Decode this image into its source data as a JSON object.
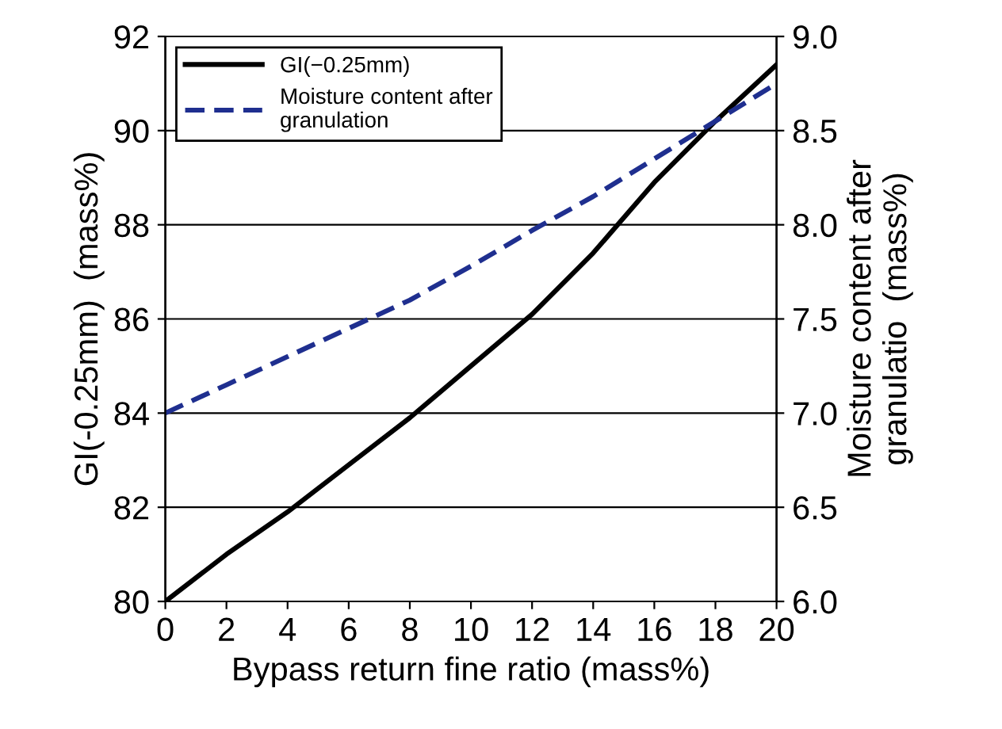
{
  "chart_data": {
    "type": "line",
    "xlabel": "Bypass return fine ratio (mass%)",
    "ylabel": "GI(-0.25mm)  (mass%)",
    "y2label": "Moisture content after\ngranulatio  (mass%)",
    "x": [
      0,
      2,
      4,
      6,
      8,
      10,
      12,
      14,
      16,
      18,
      20
    ],
    "series": [
      {
        "name": "GI(−0.25mm)",
        "color": "#000000",
        "line_style": "solid",
        "values": [
          80.0,
          81.0,
          81.9,
          82.9,
          83.9,
          85.0,
          86.1,
          87.4,
          88.9,
          90.2,
          91.4
        ]
      },
      {
        "name": "Moisture content after\ngranulation",
        "color": "#1f2f8f",
        "line_style": "dashed",
        "axis": "y2",
        "values": [
          7.0,
          7.15,
          7.3,
          7.45,
          7.6,
          7.78,
          7.97,
          8.15,
          8.35,
          8.55,
          8.75
        ]
      }
    ],
    "xlim": [
      0,
      20
    ],
    "xticks": [
      0,
      2,
      4,
      6,
      8,
      10,
      12,
      14,
      16,
      18,
      20
    ],
    "ylim": [
      80,
      92
    ],
    "yticks": [
      80,
      82,
      84,
      86,
      88,
      90,
      92
    ],
    "y2lim": [
      6.0,
      9.0
    ],
    "y2ticks": [
      {
        "value": 6.0,
        "label": "6.0"
      },
      {
        "value": 6.5,
        "label": "6.5"
      },
      {
        "value": 7.0,
        "label": "7.0"
      },
      {
        "value": 7.5,
        "label": "7.5"
      },
      {
        "value": 8.0,
        "label": "8.0"
      },
      {
        "value": 8.5,
        "label": "8.5"
      },
      {
        "value": 9.0,
        "label": "9.0"
      }
    ],
    "grid": "y",
    "legend": "top left",
    "marker": "none"
  }
}
